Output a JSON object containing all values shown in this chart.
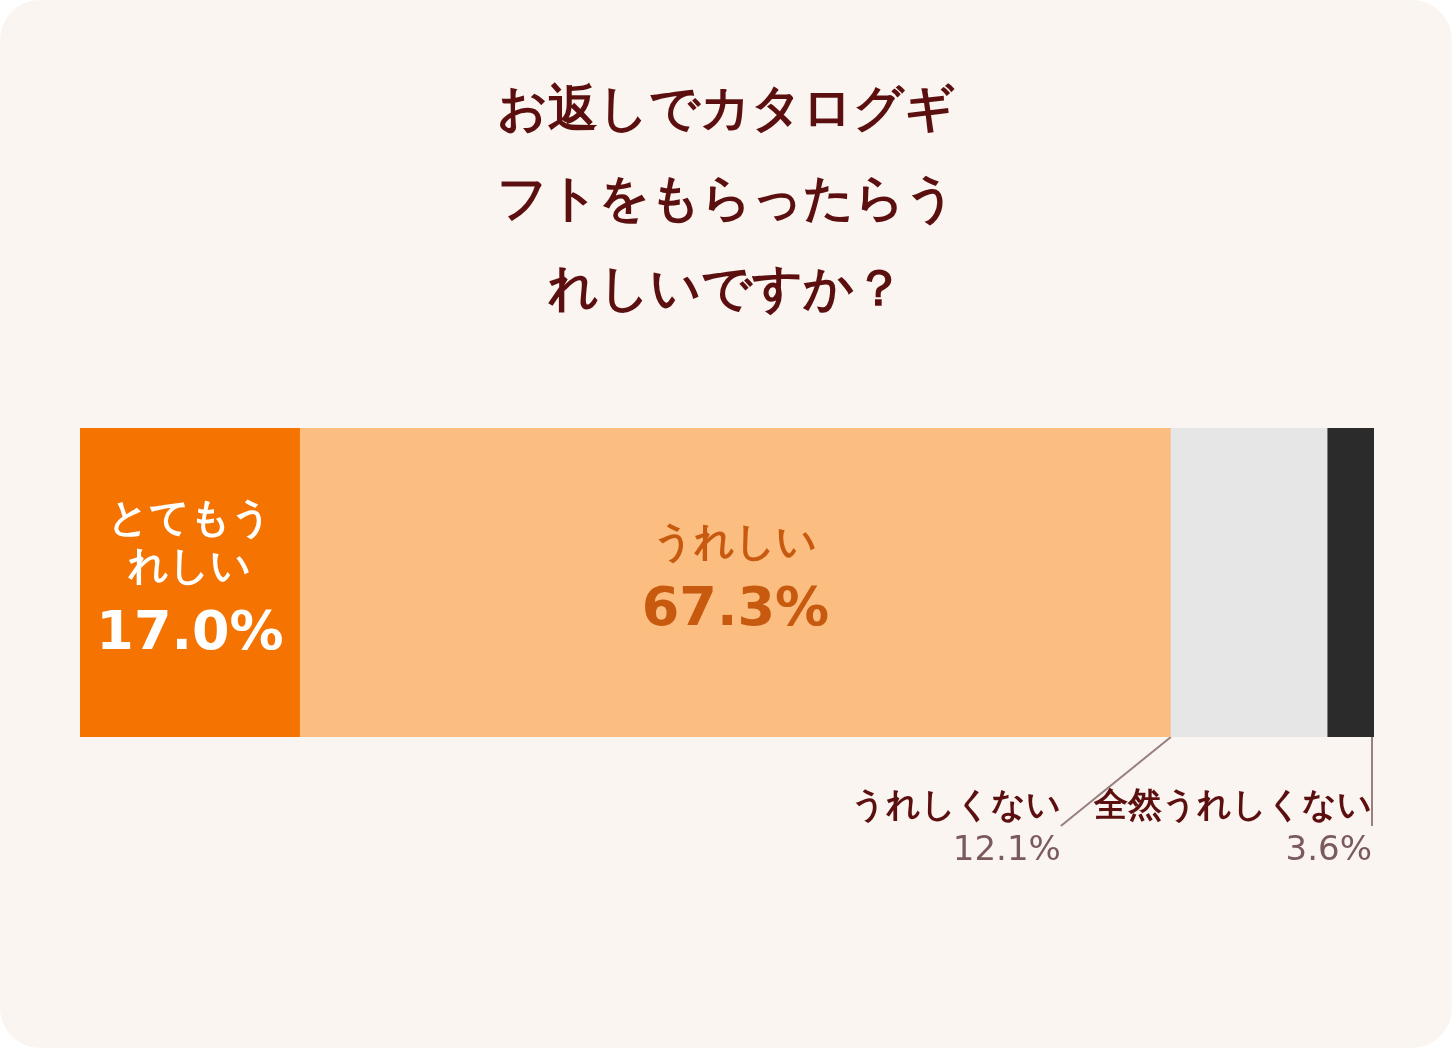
{
  "chart_data": {
    "type": "bar",
    "orientation": "horizontal",
    "stacked": true,
    "title": "お返しでカタログギフトをもらったらうれしいですか？",
    "categories": [
      null
    ],
    "xlim": [
      0,
      100
    ],
    "tick_labels": false,
    "grid": false,
    "legend": false,
    "series": [
      {
        "name": "とてもうれしい",
        "color": "#f57300",
        "values": [
          17.0
        ],
        "value_labels": [
          "17.0%"
        ]
      },
      {
        "name": "うれしい",
        "color": "#fbbd80",
        "values": [
          67.3
        ],
        "value_labels": [
          "67.3%"
        ]
      },
      {
        "name": "うれしくない",
        "color": "#e6e6e6",
        "values": [
          12.1
        ],
        "value_labels": [
          "12.1%"
        ]
      },
      {
        "name": "全然うれしくない",
        "color": "#2b2b2b",
        "values": [
          3.6
        ],
        "value_labels": [
          "3.6%"
        ]
      }
    ]
  }
}
